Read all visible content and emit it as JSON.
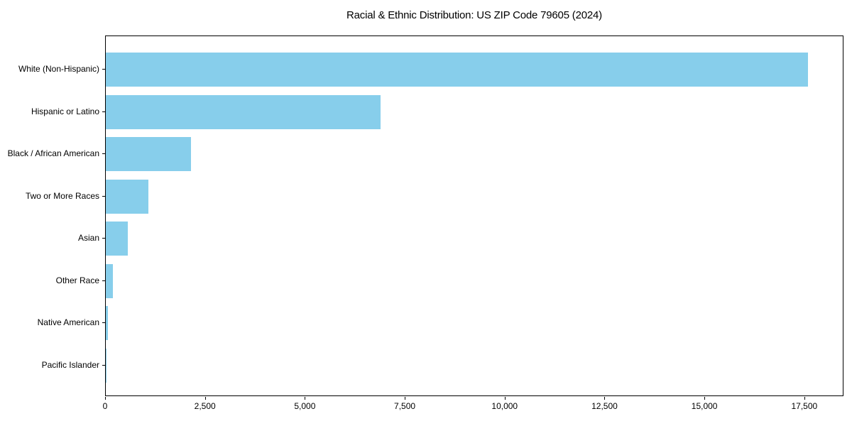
{
  "chart_data": {
    "type": "bar",
    "orientation": "horizontal",
    "title": "Racial & Ethnic Distribution: US ZIP Code 79605 (2024)",
    "categories": [
      "White (Non-Hispanic)",
      "Hispanic or Latino",
      "Black / African American",
      "Two or More Races",
      "Asian",
      "Other Race",
      "Native American",
      "Pacific Islander"
    ],
    "values": [
      17570,
      6880,
      2140,
      1070,
      550,
      175,
      50,
      10
    ],
    "xlabel": "",
    "ylabel": "",
    "xlim": [
      0,
      18480
    ],
    "xticks": [
      0,
      2500,
      5000,
      7500,
      10000,
      12500,
      15000,
      17500
    ],
    "xtick_labels": [
      "0",
      "2,500",
      "5,000",
      "7,500",
      "10,000",
      "12,500",
      "15,000",
      "17,500"
    ],
    "bar_color": "#87CEEB",
    "axis_color": "#000000",
    "text_color": "#000000",
    "background_color": "#ffffff",
    "grid": false,
    "legend": null
  }
}
